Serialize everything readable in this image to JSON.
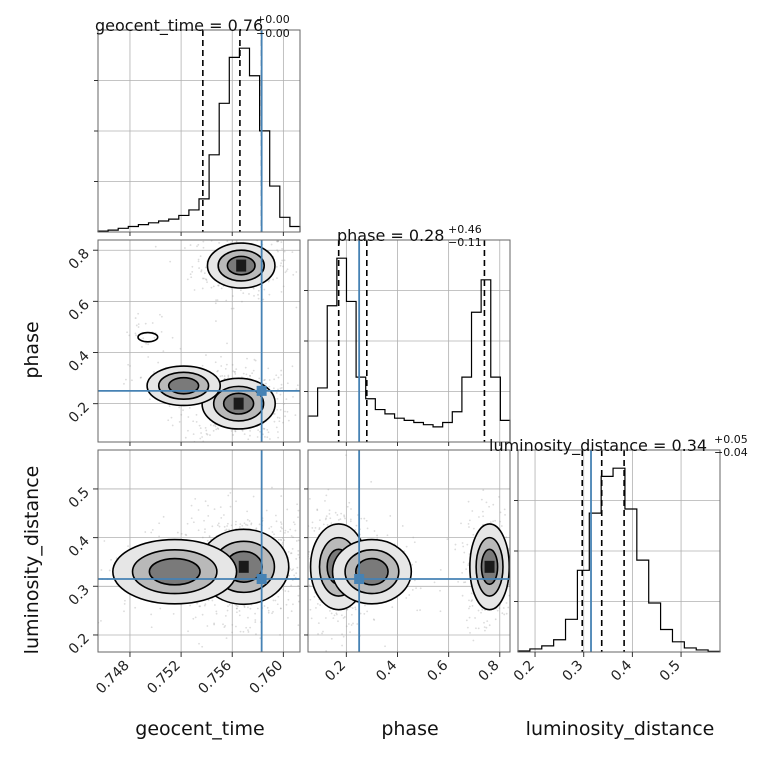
{
  "chart_data": {
    "type": "corner",
    "colors": {
      "truth": "#4682b4",
      "hist": "#000000",
      "scatter": "#9a9a9a",
      "grid": "#b0b0b0"
    },
    "parameters": [
      {
        "name": "geocent_time",
        "label": "geocent_time",
        "range": [
          0.7455,
          0.7613
        ],
        "ticks": [
          0.748,
          0.752,
          0.756,
          0.76
        ],
        "tick_labels": [
          "0.748",
          "0.752",
          "0.756",
          "0.760"
        ],
        "truth": 0.7583,
        "quantiles": [
          0.7537,
          0.7566,
          0.7583
        ],
        "title": {
          "name": "geocent_time",
          "value": "0.76",
          "plus": "+0.00",
          "minus": "−0.00"
        },
        "hist": [
          0.5,
          1,
          2,
          3,
          4,
          5,
          6,
          7,
          9,
          12,
          18,
          42,
          70,
          95,
          100,
          85,
          55,
          25,
          8,
          3
        ]
      },
      {
        "name": "phase",
        "label": "phase",
        "range": [
          0.05,
          0.84
        ],
        "ticks": [
          0.2,
          0.4,
          0.6,
          0.8
        ],
        "tick_labels": [
          "0.2",
          "0.4",
          "0.6",
          "0.8"
        ],
        "truth": 0.25,
        "quantiles": [
          0.17,
          0.28,
          0.74
        ],
        "title": {
          "name": "phase",
          "value": "0.28",
          "plus": "+0.46",
          "minus": "−0.11"
        },
        "hist": [
          12,
          25,
          63,
          85,
          65,
          30,
          20,
          15,
          13,
          11,
          10,
          9,
          8,
          7,
          9,
          14,
          30,
          60,
          75,
          30,
          10
        ]
      },
      {
        "name": "luminosity_distance",
        "label": "luminosity_distance",
        "range": [
          0.165,
          0.58
        ],
        "ticks": [
          0.2,
          0.3,
          0.4,
          0.5
        ],
        "tick_labels": [
          "0.2",
          "0.3",
          "0.4",
          "0.5"
        ],
        "truth": 0.315,
        "quantiles": [
          0.297,
          0.337,
          0.383
        ],
        "title": {
          "name": "luminosity_distance",
          "value": "0.34",
          "plus": "+0.05",
          "minus": "−0.04"
        },
        "hist": [
          0.5,
          1.5,
          3,
          6,
          16,
          40,
          68,
          86,
          90,
          70,
          45,
          24,
          11,
          5,
          2,
          1,
          0.3
        ]
      }
    ],
    "pairs": [
      {
        "x": "geocent_time",
        "y": "phase",
        "modes": [
          {
            "cx": 0.7567,
            "cy": 0.74,
            "sx": 0.0012,
            "sy": 0.04,
            "w": 0.35
          },
          {
            "cx": 0.7565,
            "cy": 0.2,
            "sx": 0.0013,
            "sy": 0.045,
            "w": 0.55
          },
          {
            "cx": 0.7522,
            "cy": 0.27,
            "sx": 0.0013,
            "sy": 0.035,
            "w": 0.07
          },
          {
            "cx": 0.7494,
            "cy": 0.46,
            "sx": 0.0007,
            "sy": 0.03,
            "w": 0.03
          }
        ]
      },
      {
        "x": "geocent_time",
        "y": "luminosity_distance",
        "modes": [
          {
            "cx": 0.7569,
            "cy": 0.34,
            "sx": 0.0016,
            "sy": 0.035,
            "w": 0.85
          },
          {
            "cx": 0.7515,
            "cy": 0.33,
            "sx": 0.0022,
            "sy": 0.03,
            "w": 0.15
          }
        ]
      },
      {
        "x": "phase",
        "y": "luminosity_distance",
        "modes": [
          {
            "cx": 0.17,
            "cy": 0.34,
            "sx": 0.05,
            "sy": 0.04,
            "w": 0.55
          },
          {
            "cx": 0.3,
            "cy": 0.33,
            "sx": 0.07,
            "sy": 0.03,
            "w": 0.12
          },
          {
            "cx": 0.76,
            "cy": 0.34,
            "sx": 0.035,
            "sy": 0.04,
            "w": 0.33
          }
        ]
      }
    ],
    "grid": true
  }
}
